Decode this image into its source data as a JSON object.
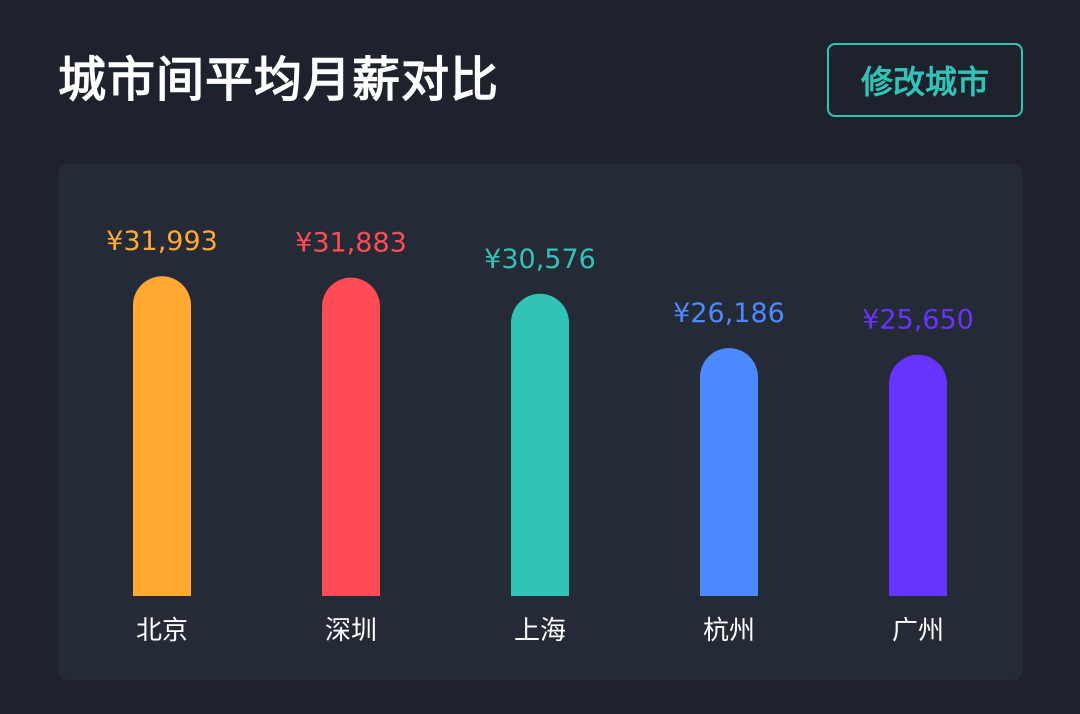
{
  "header": {
    "title": "城市间平均月薪对比",
    "edit_button_label": "修改城市"
  },
  "colors": {
    "accent": "#33c2b8"
  },
  "chart_data": {
    "type": "bar",
    "title": "城市间平均月薪对比",
    "categories": [
      "北京",
      "深圳",
      "上海",
      "杭州",
      "广州"
    ],
    "values": [
      31993,
      31883,
      30576,
      26186,
      25650
    ],
    "value_labels": [
      "¥31,993",
      "¥31,883",
      "¥30,576",
      "¥26,186",
      "¥25,650"
    ],
    "colors": [
      "#ffa933",
      "#ff4b55",
      "#33c2b8",
      "#4c89ff",
      "#6633ff"
    ],
    "xlabel": "",
    "ylabel": "",
    "grid": false
  }
}
